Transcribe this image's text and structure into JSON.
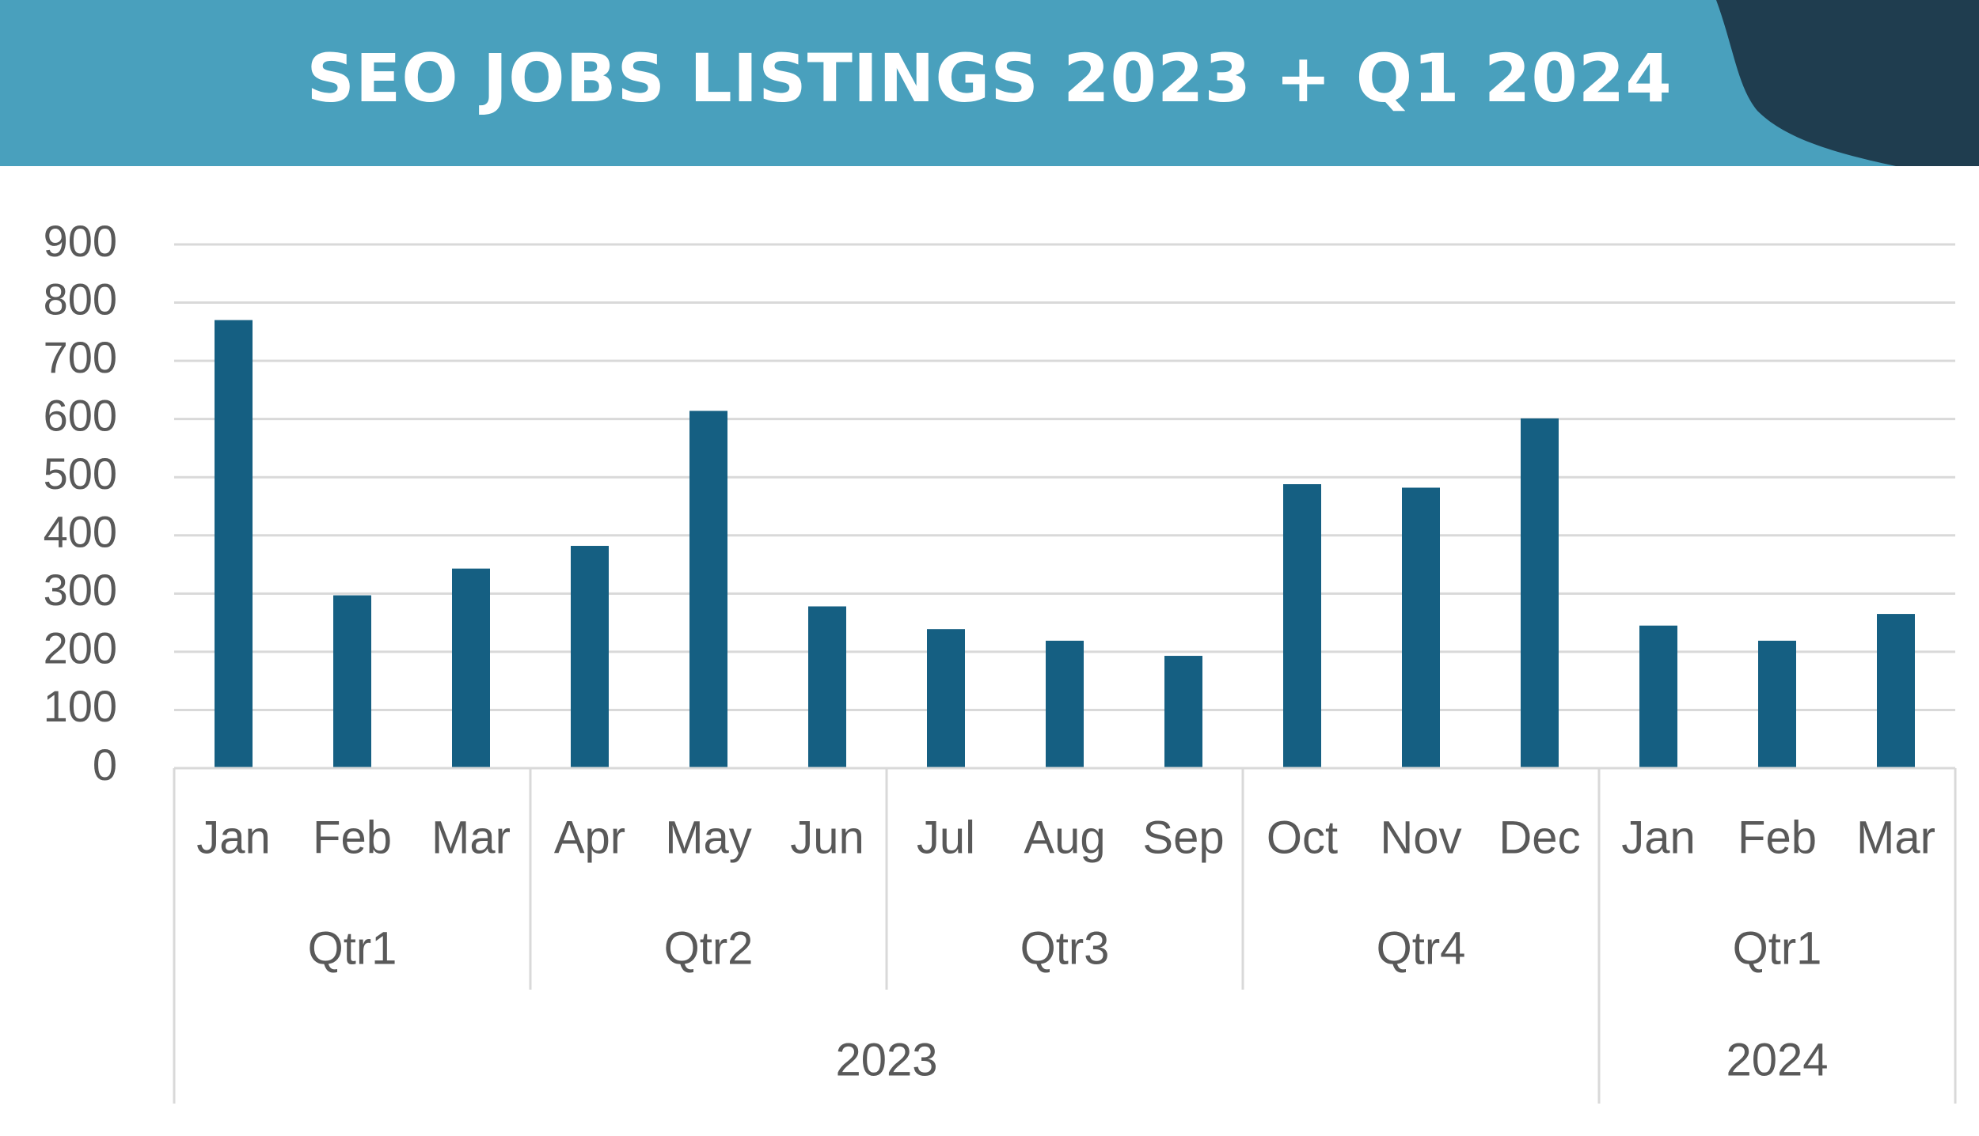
{
  "chart_data": {
    "type": "bar",
    "title": "SEO JOBS LISTINGS 2023 + Q1 2024",
    "groups": [
      {
        "label": "2023",
        "quarters": [
          {
            "label": "Qtr1",
            "categories": [
              "Jan",
              "Feb",
              "Mar"
            ]
          },
          {
            "label": "Qtr2",
            "categories": [
              "Apr",
              "May",
              "Jun"
            ]
          },
          {
            "label": "Qtr3",
            "categories": [
              "Jul",
              "Aug",
              "Sep"
            ]
          },
          {
            "label": "Qtr4",
            "categories": [
              "Oct",
              "Nov",
              "Dec"
            ]
          }
        ]
      },
      {
        "label": "2024",
        "quarters": [
          {
            "label": "Qtr1",
            "categories": [
              "Jan",
              "Feb",
              "Mar"
            ]
          }
        ]
      }
    ],
    "values": [
      770,
      297,
      343,
      382,
      614,
      278,
      239,
      219,
      193,
      488,
      482,
      601,
      245,
      219,
      265
    ],
    "color": "#155f82",
    "ylim": [
      0,
      900
    ],
    "yticks": [
      0,
      100,
      200,
      300,
      400,
      500,
      600,
      700,
      800,
      900
    ],
    "grid": true
  }
}
